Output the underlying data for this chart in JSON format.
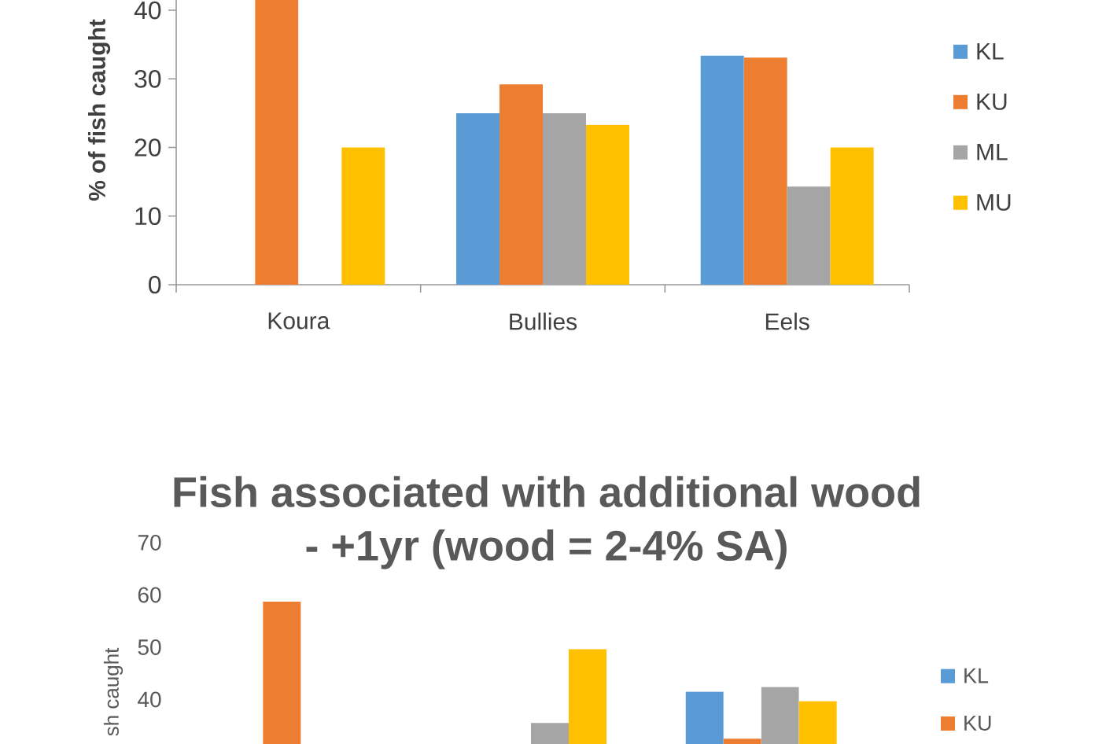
{
  "chart_data": [
    {
      "type": "bar",
      "ylabel": "% of fish caught",
      "categories": [
        "Koura",
        "Bullies",
        "Eels"
      ],
      "series": [
        {
          "name": "KL",
          "color": "#5b9bd5",
          "values": [
            null,
            25,
            33.4
          ]
        },
        {
          "name": "KU",
          "color": "#ed7d31",
          "values": [
            41.5,
            29.2,
            33.1
          ]
        },
        {
          "name": "ML",
          "color": "#a5a5a5",
          "values": [
            null,
            25,
            14.3
          ]
        },
        {
          "name": "MU",
          "color": "#ffc000",
          "values": [
            20,
            23.3,
            20
          ]
        }
      ],
      "ylim": [
        0,
        41.5
      ],
      "yticks": [
        0,
        10,
        20,
        30,
        40
      ],
      "legend": "right"
    },
    {
      "type": "bar",
      "title": "Fish associated with additional wood - +1yr (wood = 2-4% SA)",
      "ylabel": "sh caught",
      "categories": [
        null,
        null,
        null
      ],
      "series": [
        {
          "name": "KL",
          "color": "#5b9bd5",
          "values": [
            null,
            null,
            41.5
          ]
        },
        {
          "name": "KU",
          "color": "#ed7d31",
          "values": [
            58.7,
            null,
            32.5
          ]
        },
        {
          "color": "#a5a5a5",
          "values": [
            null,
            35.5,
            42.4
          ]
        },
        {
          "color": "#ffc000",
          "values": [
            null,
            49.6,
            39.7
          ]
        }
      ],
      "ylim": [
        31.5,
        70
      ],
      "yticks": [
        40,
        50,
        60,
        70
      ],
      "legend": "right"
    }
  ]
}
